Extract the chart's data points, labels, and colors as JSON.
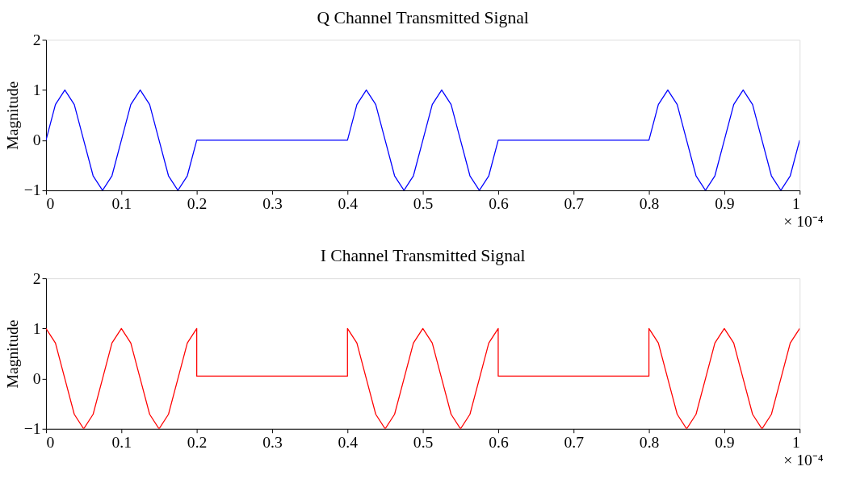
{
  "chart_data": [
    {
      "type": "line",
      "title": "Q Channel Transmitted Signal",
      "ylabel": "Magnitude",
      "annotations": [
        "× 10⁻⁴"
      ],
      "xlim": [
        0,
        1
      ],
      "xticks": [
        0,
        0.1,
        0.2,
        0.3,
        0.4,
        0.5,
        0.6,
        0.7,
        0.8,
        0.9,
        1
      ],
      "ylim": [
        -1,
        2
      ],
      "yticks": [
        -1,
        0,
        1,
        2
      ],
      "grid": false,
      "series": [
        {
          "color": "#0000ff",
          "x": [
            0,
            0.0125,
            0.025,
            0.0375,
            0.05,
            0.0625,
            0.075,
            0.0875,
            0.1,
            0.1125,
            0.125,
            0.1375,
            0.15,
            0.1625,
            0.175,
            0.1875,
            0.2,
            0.4,
            0.4125,
            0.425,
            0.4375,
            0.45,
            0.4625,
            0.475,
            0.4875,
            0.5,
            0.5125,
            0.525,
            0.5375,
            0.55,
            0.5625,
            0.575,
            0.5875,
            0.6,
            0.8,
            0.8125,
            0.825,
            0.8375,
            0.85,
            0.8625,
            0.875,
            0.8875,
            0.9,
            0.9125,
            0.925,
            0.9375,
            0.95,
            0.9625,
            0.975,
            0.9875,
            1
          ],
          "values": [
            0,
            0.71,
            1,
            0.71,
            0,
            -0.71,
            -1,
            -0.71,
            0,
            0.71,
            1,
            0.71,
            0,
            -0.71,
            -1,
            -0.71,
            0,
            0,
            0.71,
            1,
            0.71,
            0,
            -0.71,
            -1,
            -0.71,
            0,
            0.71,
            1,
            0.71,
            0,
            -0.71,
            -1,
            -0.71,
            0,
            0,
            0.71,
            1,
            0.71,
            0,
            -0.71,
            -1,
            -0.71,
            0,
            0.71,
            1,
            0.71,
            0,
            -0.71,
            -1,
            -0.71,
            0
          ]
        }
      ]
    },
    {
      "type": "line",
      "title": "I Channel Transmitted Signal",
      "ylabel": "Magnitude",
      "annotations": [
        "× 10⁻⁴"
      ],
      "xlim": [
        0,
        1
      ],
      "xticks": [
        0,
        0.1,
        0.2,
        0.3,
        0.4,
        0.5,
        0.6,
        0.7,
        0.8,
        0.9,
        1
      ],
      "ylim": [
        -1,
        2
      ],
      "yticks": [
        -1,
        0,
        1,
        2
      ],
      "grid": false,
      "series": [
        {
          "color": "#ff0000",
          "x": [
            0,
            0.0125,
            0.025,
            0.0375,
            0.05,
            0.0625,
            0.075,
            0.0875,
            0.1,
            0.1125,
            0.125,
            0.1375,
            0.15,
            0.1625,
            0.175,
            0.1875,
            0.2,
            0.2,
            0.4,
            0.4,
            0.4125,
            0.425,
            0.4375,
            0.45,
            0.4625,
            0.475,
            0.4875,
            0.5,
            0.5125,
            0.525,
            0.5375,
            0.55,
            0.5625,
            0.575,
            0.5875,
            0.6,
            0.6,
            0.8,
            0.8,
            0.8125,
            0.825,
            0.8375,
            0.85,
            0.8625,
            0.875,
            0.8875,
            0.9,
            0.9125,
            0.925,
            0.9375,
            0.95,
            0.9625,
            0.975,
            0.9875,
            1
          ],
          "values": [
            1,
            0.71,
            0,
            -0.71,
            -1,
            -0.71,
            0,
            0.71,
            1,
            0.71,
            0,
            -0.71,
            -1,
            -0.71,
            0,
            0.71,
            1,
            0.05,
            0.05,
            1,
            0.71,
            0,
            -0.71,
            -1,
            -0.71,
            0,
            0.71,
            1,
            0.71,
            0,
            -0.71,
            -1,
            -0.71,
            0,
            0.71,
            1,
            0.05,
            0.05,
            1,
            0.71,
            0,
            -0.71,
            -1,
            -0.71,
            0,
            0.71,
            1,
            0.71,
            0,
            -0.71,
            -1,
            -0.71,
            0,
            0.71,
            1
          ]
        }
      ]
    }
  ]
}
